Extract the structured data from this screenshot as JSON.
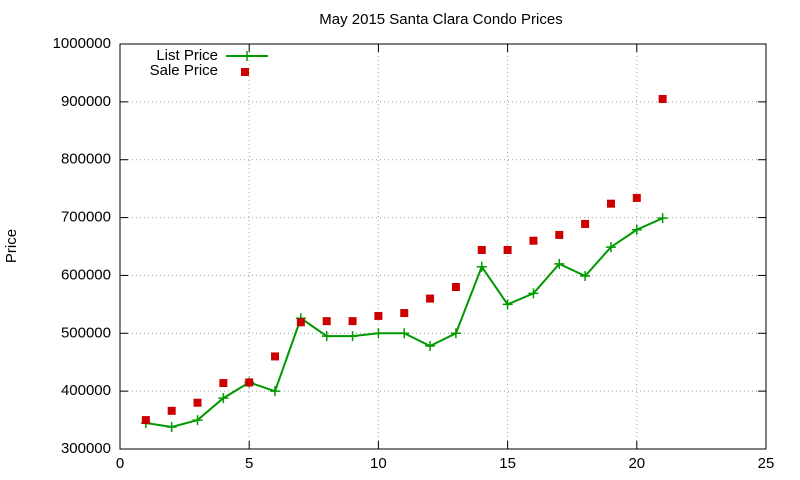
{
  "chart_data": {
    "type": "line",
    "title": "May 2015 Santa Clara Condo Prices",
    "y_label": "Price",
    "x": [
      1,
      2,
      3,
      4,
      5,
      6,
      7,
      8,
      9,
      10,
      11,
      12,
      13,
      14,
      15,
      16,
      17,
      18,
      19,
      20,
      21
    ],
    "series": [
      {
        "name": "List Price",
        "color": "#009900",
        "style": "linespoints",
        "values": [
          345000,
          338000,
          350000,
          388000,
          415000,
          400000,
          526000,
          495000,
          495000,
          500000,
          500000,
          478000,
          500000,
          615000,
          550000,
          569000,
          620000,
          599000,
          649000,
          679000,
          699000
        ]
      },
      {
        "name": "Sale Price",
        "color": "#cc0000",
        "style": "points",
        "values": [
          350000,
          366000,
          380000,
          414000,
          415000,
          460000,
          519000,
          521000,
          521000,
          530000,
          535000,
          560000,
          580000,
          644000,
          644000,
          660000,
          670000,
          689000,
          724000,
          734000,
          905000
        ]
      }
    ],
    "xlim": [
      0,
      25
    ],
    "xticks": [
      0,
      5,
      10,
      15,
      20,
      25
    ],
    "ylim": [
      300000,
      1000000
    ],
    "yticks": [
      300000,
      400000,
      500000,
      600000,
      700000,
      800000,
      900000,
      1000000
    ],
    "grid": true,
    "legend": "top-left"
  }
}
